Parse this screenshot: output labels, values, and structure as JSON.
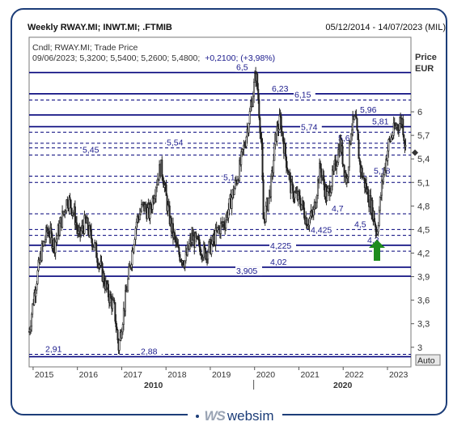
{
  "header": {
    "title": "Weekly RWAY.MI; INWT.MI; .FTMIB",
    "date_range": "05/12/2014 - 14/07/2023 (MIL)"
  },
  "info": {
    "line1": "Cndl; RWAY.MI; Trade Price",
    "line2_values": "09/06/2023; 5,3200; 5,5400; 5,2600; 5,4800;",
    "line2_change": "+0,2100; (+3,98%)"
  },
  "axis": {
    "ylabel_line1": "Price",
    "ylabel_line2": "EUR",
    "auto_button": "Auto"
  },
  "brand": {
    "logo": "WS",
    "name": "websim"
  },
  "colors": {
    "frame": "#1c3d78",
    "level_line": "#00007a",
    "level_text": "#1a1a8c",
    "price": "#222222",
    "arrow": "#1e8c1e"
  },
  "chart_data": {
    "type": "candlestick",
    "ylim": [
      2.75,
      6.95
    ],
    "y_ticks": [
      "6",
      "5,7",
      "5,4",
      "5,1",
      "4,8",
      "4,5",
      "4,2",
      "3,9",
      "3,6",
      "3,3",
      "3"
    ],
    "x_ticks": [
      "2015",
      "2016",
      "2017",
      "2018",
      "2019",
      "2020",
      "2021",
      "2022",
      "2023"
    ],
    "x_secondary": [
      "2010",
      "2020"
    ],
    "levels": [
      {
        "label": "6,5",
        "value": 6.5,
        "style": "solid"
      },
      {
        "label": "6,23",
        "value": 6.23,
        "style": "solid"
      },
      {
        "label": "6,15",
        "value": 6.15,
        "style": "dashed"
      },
      {
        "label": "5,96",
        "value": 5.96,
        "style": "solid"
      },
      {
        "label": "5,81",
        "value": 5.81,
        "style": "solid"
      },
      {
        "label": "5,74",
        "value": 5.74,
        "style": "dashed"
      },
      {
        "label": "5,6",
        "value": 5.6,
        "style": "dashed"
      },
      {
        "label": "5,54",
        "value": 5.54,
        "style": "dashed"
      },
      {
        "label": "5,45",
        "value": 5.45,
        "style": "dashed"
      },
      {
        "label": "5,18",
        "value": 5.18,
        "style": "dashed"
      },
      {
        "label": "5,1",
        "value": 5.1,
        "style": "dashed"
      },
      {
        "label": "4,7",
        "value": 4.7,
        "style": "dashed"
      },
      {
        "label": "4,5",
        "value": 4.5,
        "style": "dashed"
      },
      {
        "label": "4,425",
        "value": 4.425,
        "style": "dashed"
      },
      {
        "label": "4,3",
        "value": 4.3,
        "style": "solid"
      },
      {
        "label": "4,225",
        "value": 4.225,
        "style": "dashed"
      },
      {
        "label": "4,02",
        "value": 4.02,
        "style": "solid"
      },
      {
        "label": "3,905",
        "value": 3.905,
        "style": "solid"
      },
      {
        "label": "2,91",
        "value": 2.91,
        "style": "dashed"
      },
      {
        "label": "2,88",
        "value": 2.88,
        "style": "solid"
      }
    ],
    "price_series": {
      "name": "RWAY.MI",
      "x": [
        2014.93,
        2015.05,
        2015.2,
        2015.35,
        2015.5,
        2015.65,
        2015.8,
        2015.95,
        2016.05,
        2016.2,
        2016.4,
        2016.55,
        2016.7,
        2016.85,
        2016.95,
        2017.05,
        2017.2,
        2017.35,
        2017.5,
        2017.65,
        2017.8,
        2017.9,
        2017.95,
        2018.05,
        2018.15,
        2018.3,
        2018.45,
        2018.6,
        2018.75,
        2018.9,
        2019.05,
        2019.2,
        2019.35,
        2019.5,
        2019.65,
        2019.8,
        2019.95,
        2020.05,
        2020.1,
        2020.18,
        2020.22,
        2020.3,
        2020.4,
        2020.5,
        2020.6,
        2020.7,
        2020.85,
        2021.0,
        2021.1,
        2021.2,
        2021.35,
        2021.5,
        2021.65,
        2021.8,
        2021.95,
        2022.1,
        2022.2,
        2022.3,
        2022.4,
        2022.55,
        2022.7,
        2022.78,
        2022.9,
        2023.05,
        2023.2,
        2023.35,
        2023.44
      ],
      "values": [
        3.2,
        3.7,
        4.2,
        4.5,
        4.3,
        4.6,
        4.9,
        4.7,
        4.4,
        4.6,
        4.3,
        4.0,
        3.7,
        3.5,
        3.0,
        3.4,
        4.0,
        4.6,
        4.8,
        4.7,
        5.1,
        5.3,
        5.2,
        4.8,
        4.5,
        4.2,
        4.1,
        4.4,
        4.3,
        4.2,
        4.3,
        4.5,
        4.6,
        4.9,
        5.2,
        5.6,
        6.1,
        6.5,
        6.2,
        5.5,
        4.6,
        4.8,
        5.1,
        5.7,
        5.9,
        5.5,
        5.0,
        4.9,
        4.8,
        4.6,
        4.7,
        5.3,
        4.9,
        5.2,
        5.6,
        5.1,
        5.8,
        5.9,
        5.3,
        5.0,
        4.7,
        4.45,
        5.1,
        5.6,
        5.8,
        5.9,
        5.48
      ]
    },
    "last_price": 5.48,
    "grid": false,
    "legend": "none"
  }
}
